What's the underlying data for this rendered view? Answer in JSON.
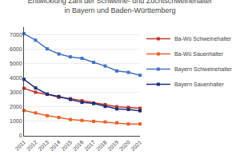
{
  "chart_data": {
    "type": "line",
    "title": "Entwicklung Zahl der Schweine- und Zuchtschweinehalter\nin Bayern und Baden-Württemberg",
    "x": [
      2011,
      2012,
      2013,
      2014,
      2015,
      2016,
      2017,
      2018,
      2019,
      2020,
      2021
    ],
    "series": [
      {
        "name": "Ba-Wü Schweinehalter",
        "color": "#c0392b",
        "marker": "square",
        "line_style": "solid",
        "values": [
          3280,
          3010,
          2860,
          2660,
          2560,
          2420,
          2260,
          2150,
          2010,
          1960,
          1900
        ]
      },
      {
        "name": "Ba-Wü Sauenhalter",
        "color": "#e8622a",
        "marker": "square",
        "line_style": "solid",
        "values": [
          1750,
          1580,
          1390,
          1270,
          1130,
          1060,
          1000,
          960,
          900,
          820,
          820
        ]
      },
      {
        "name": "Bayern Schweinehalter",
        "color": "#4472c4",
        "marker": "square",
        "line_style": "solid",
        "values": [
          7050,
          6600,
          6000,
          5650,
          5450,
          5350,
          5070,
          4820,
          4480,
          4380,
          4180
        ]
      },
      {
        "name": "Bayern Sauenhalter",
        "color": "#1f2d7a",
        "marker": "square",
        "line_style": "solid",
        "values": [
          3900,
          3300,
          2880,
          2720,
          2510,
          2310,
          2230,
          2030,
          1860,
          1820,
          1730
        ]
      }
    ],
    "xlim": [
      2011,
      2021
    ],
    "xticks": [
      2011,
      2012,
      2013,
      2014,
      2015,
      2016,
      2017,
      2018,
      2019,
      2020,
      2021
    ],
    "ylim": [
      0,
      7500
    ],
    "yticks": [
      0,
      1000,
      2000,
      3000,
      4000,
      5000,
      6000,
      7000
    ],
    "grid": true,
    "legend": "upper right"
  }
}
